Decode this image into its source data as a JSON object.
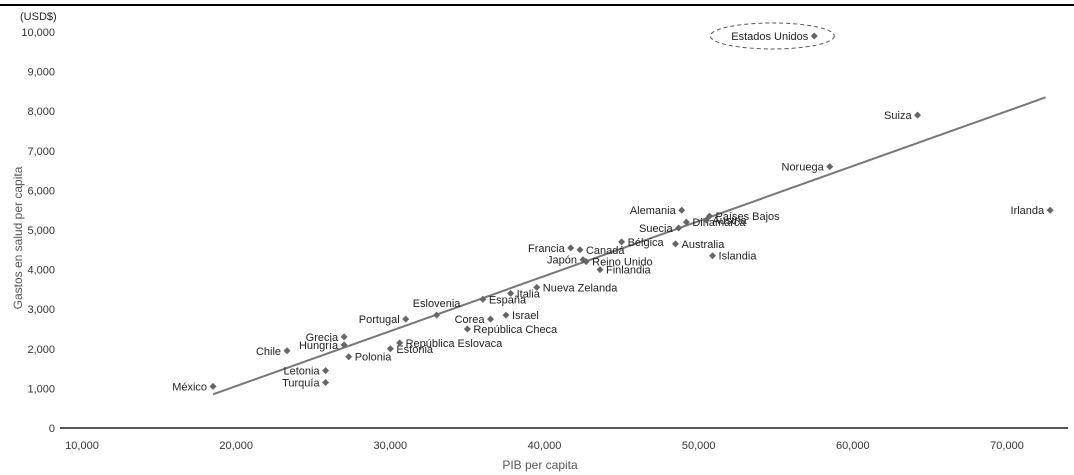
{
  "chart_data": {
    "type": "scatter",
    "unit_label": "(USD$)",
    "xlabel": "PIB per capita",
    "ylabel": "Gastos en salud per capita",
    "xlim": [
      10000,
      73000
    ],
    "ylim": [
      0,
      10000
    ],
    "x_ticks": [
      {
        "value": 10000,
        "label": "10,000"
      },
      {
        "value": 20000,
        "label": "20,000"
      },
      {
        "value": 30000,
        "label": "30,000"
      },
      {
        "value": 40000,
        "label": "40,000"
      },
      {
        "value": 50000,
        "label": "50,000"
      },
      {
        "value": 60000,
        "label": "60,000"
      },
      {
        "value": 70000,
        "label": "70,000"
      }
    ],
    "y_ticks": [
      {
        "value": 0,
        "label": "0"
      },
      {
        "value": 1000,
        "label": "1,000"
      },
      {
        "value": 2000,
        "label": "2,000"
      },
      {
        "value": 3000,
        "label": "3,000"
      },
      {
        "value": 4000,
        "label": "4,000"
      },
      {
        "value": 5000,
        "label": "5,000"
      },
      {
        "value": 6000,
        "label": "6,000"
      },
      {
        "value": 7000,
        "label": "7,000"
      },
      {
        "value": 8000,
        "label": "8,000"
      },
      {
        "value": 9000,
        "label": "9,000"
      },
      {
        "value": 10000,
        "label": "10,000"
      }
    ],
    "trendline": {
      "x": [
        18500,
        72500
      ],
      "y": [
        850,
        8350
      ]
    },
    "highlight": "Estados Unidos",
    "points": [
      {
        "name": "México",
        "x": 18500,
        "y": 1050,
        "anchor": "end"
      },
      {
        "name": "Chile",
        "x": 23300,
        "y": 1950,
        "anchor": "end"
      },
      {
        "name": "Turquía",
        "x": 25800,
        "y": 1150,
        "anchor": "end"
      },
      {
        "name": "Letonia",
        "x": 25800,
        "y": 1450,
        "anchor": "end"
      },
      {
        "name": "Hungría",
        "x": 27000,
        "y": 2100,
        "anchor": "end"
      },
      {
        "name": "Grecia",
        "x": 27000,
        "y": 2300,
        "anchor": "end"
      },
      {
        "name": "Polonia",
        "x": 27300,
        "y": 1800,
        "anchor": "start"
      },
      {
        "name": "Estonia",
        "x": 30000,
        "y": 2000,
        "anchor": "start"
      },
      {
        "name": "República Eslovaca",
        "x": 30600,
        "y": 2150,
        "anchor": "start"
      },
      {
        "name": "Portugal",
        "x": 31000,
        "y": 2750,
        "anchor": "end"
      },
      {
        "name": "Eslovenia",
        "x": 33000,
        "y": 2850,
        "anchor": "middle"
      },
      {
        "name": "República Checa",
        "x": 35000,
        "y": 2500,
        "anchor": "start"
      },
      {
        "name": "Corea",
        "x": 36500,
        "y": 2750,
        "anchor": "end"
      },
      {
        "name": "Israel",
        "x": 37500,
        "y": 2850,
        "anchor": "start"
      },
      {
        "name": "España",
        "x": 36000,
        "y": 3250,
        "anchor": "start"
      },
      {
        "name": "Italia",
        "x": 37800,
        "y": 3400,
        "anchor": "start"
      },
      {
        "name": "Nueva Zelanda",
        "x": 39500,
        "y": 3550,
        "anchor": "start"
      },
      {
        "name": "Finlandia",
        "x": 43600,
        "y": 4000,
        "anchor": "start"
      },
      {
        "name": "Reino Unido",
        "x": 42700,
        "y": 4200,
        "anchor": "start"
      },
      {
        "name": "Japón",
        "x": 42500,
        "y": 4250,
        "anchor": "end"
      },
      {
        "name": "Francia",
        "x": 41700,
        "y": 4550,
        "anchor": "end"
      },
      {
        "name": "Canadá",
        "x": 42300,
        "y": 4500,
        "anchor": "start"
      },
      {
        "name": "Bélgica",
        "x": 45000,
        "y": 4700,
        "anchor": "start"
      },
      {
        "name": "Australia",
        "x": 48500,
        "y": 4650,
        "anchor": "start"
      },
      {
        "name": "Suecia",
        "x": 48700,
        "y": 5050,
        "anchor": "end"
      },
      {
        "name": "Alemania",
        "x": 48900,
        "y": 5500,
        "anchor": "end"
      },
      {
        "name": "Dinamarca",
        "x": 49200,
        "y": 5200,
        "anchor": "start"
      },
      {
        "name": "Austria",
        "x": 50500,
        "y": 5250,
        "anchor": "start"
      },
      {
        "name": "Países Bajos",
        "x": 50700,
        "y": 5350,
        "anchor": "start"
      },
      {
        "name": "Islandia",
        "x": 50900,
        "y": 4350,
        "anchor": "start"
      },
      {
        "name": "Noruega",
        "x": 58500,
        "y": 6600,
        "anchor": "end"
      },
      {
        "name": "Suiza",
        "x": 64200,
        "y": 7900,
        "anchor": "end"
      },
      {
        "name": "Irlanda",
        "x": 72800,
        "y": 5500,
        "anchor": "end"
      },
      {
        "name": "Estados Unidos",
        "x": 57500,
        "y": 9900,
        "anchor": "end"
      }
    ]
  }
}
